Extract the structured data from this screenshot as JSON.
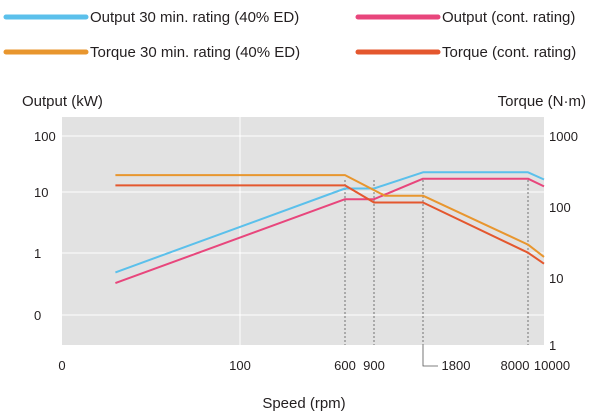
{
  "chart_data": {
    "type": "line",
    "title": "",
    "xlabel": "Speed (rpm)",
    "ylabel_left": "Output (kW)",
    "ylabel_right": "Torque (N·m)",
    "x_tick_labels": [
      "0",
      "100",
      "600",
      "900",
      "1800",
      "8000",
      "10000"
    ],
    "y_left_tick_labels": [
      "0",
      "1",
      "10",
      "100"
    ],
    "y_right_tick_labels": [
      "1",
      "10",
      "100",
      "1000"
    ],
    "grid": true,
    "legend_position": "top",
    "colors": {
      "output_30min": "#5bc0eb",
      "output_cont": "#e8467c",
      "torque_30min": "#e8962e",
      "torque_cont": "#e4572e",
      "background": "#e2e2e2"
    },
    "series": [
      {
        "name": "Output 30 min. rating (40% ED)",
        "axis": "left",
        "points": [
          [
            30,
            0.4
          ],
          [
            600,
            11.5
          ],
          [
            900,
            11.5
          ],
          [
            1800,
            22
          ],
          [
            8000,
            22
          ],
          [
            10000,
            16.5
          ]
        ]
      },
      {
        "name": "Output (cont. rating)",
        "axis": "left",
        "points": [
          [
            30,
            0.26
          ],
          [
            600,
            7.5
          ],
          [
            900,
            7.5
          ],
          [
            1800,
            17
          ],
          [
            8000,
            17
          ],
          [
            10000,
            12.5
          ]
        ]
      },
      {
        "name": "Torque 30 min. rating (40% ED)",
        "axis": "right",
        "points": [
          [
            30,
            295
          ],
          [
            600,
            295
          ],
          [
            1100,
            150
          ],
          [
            1800,
            150
          ],
          [
            8000,
            30
          ],
          [
            10000,
            20
          ]
        ]
      },
      {
        "name": "Torque (cont. rating)",
        "axis": "right",
        "points": [
          [
            30,
            210
          ],
          [
            600,
            210
          ],
          [
            900,
            120
          ],
          [
            1800,
            120
          ],
          [
            8000,
            23
          ],
          [
            10000,
            16
          ]
        ]
      }
    ],
    "markers": [
      600,
      900,
      1800,
      8000
    ]
  }
}
